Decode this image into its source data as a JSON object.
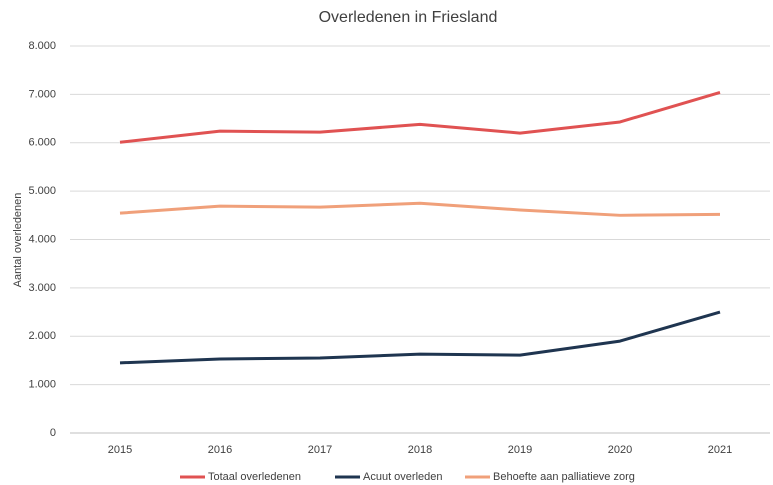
{
  "chart_data": {
    "type": "line",
    "title": "Overledenen in Friesland",
    "y_label": "Aantal overledenen",
    "categories": [
      "2015",
      "2016",
      "2017",
      "2018",
      "2019",
      "2020",
      "2021"
    ],
    "series": [
      {
        "name": "Totaal overledenen",
        "color": "#e05252",
        "values": [
          6010,
          6240,
          6220,
          6380,
          6200,
          6430,
          7040
        ]
      },
      {
        "name": "Acuut overleden",
        "color": "#1f3550",
        "values": [
          1450,
          1530,
          1550,
          1630,
          1610,
          1900,
          2500
        ]
      },
      {
        "name": "Behoefte aan palliatieve zorg",
        "color": "#f0a07a",
        "values": [
          4545,
          4690,
          4670,
          4750,
          4610,
          4500,
          4520
        ]
      }
    ],
    "ylim": [
      0,
      8000
    ],
    "yticks": [
      {
        "value": 0,
        "label": "0"
      },
      {
        "value": 1000,
        "label": "1.000"
      },
      {
        "value": 2000,
        "label": "2.000"
      },
      {
        "value": 3000,
        "label": "3.000"
      },
      {
        "value": 4000,
        "label": "4.000"
      },
      {
        "value": 5000,
        "label": "5.000"
      },
      {
        "value": 6000,
        "label": "6.000"
      },
      {
        "value": 7000,
        "label": "7.000"
      },
      {
        "value": 8000,
        "label": "8.000"
      }
    ],
    "grid": true,
    "legend": "bottom"
  }
}
